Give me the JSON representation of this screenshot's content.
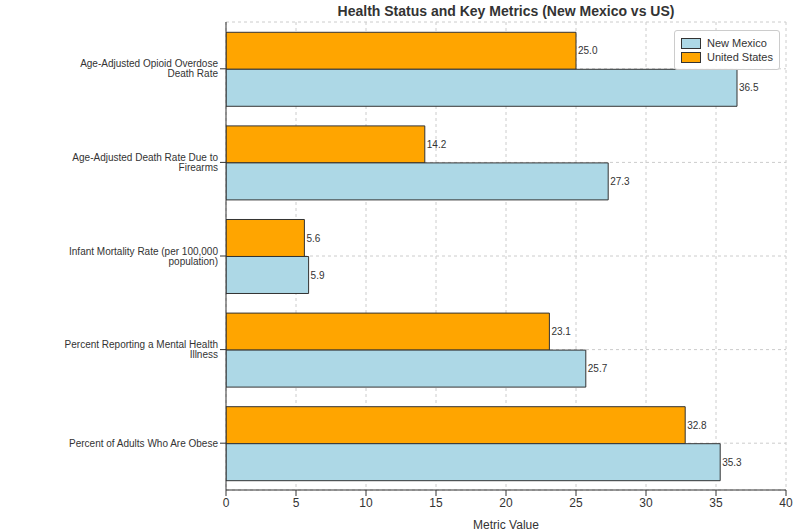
{
  "chart_data": {
    "type": "bar",
    "title": "Health Status and Key Metrics (New Mexico vs US)",
    "orientation": "horizontal",
    "categories": [
      "Age-Adjusted Opioid Overdose Death Rate",
      "Age-Adjusted Death Rate Due to Firearms",
      "Infant Mortality Rate (per 100,000 population)",
      "Percent Reporting a Mental Health Illness",
      "Percent of Adults Who Are Obese"
    ],
    "series": [
      {
        "name": "New Mexico",
        "color": "#add8e6",
        "values": [
          36.5,
          27.3,
          5.9,
          25.7,
          35.3
        ]
      },
      {
        "name": "United States",
        "color": "#ffa500",
        "values": [
          25.0,
          14.2,
          5.6,
          23.1,
          32.8
        ],
        "value_labels": [
          "25.0",
          "14.2",
          "5.6",
          "23.1",
          "32.8"
        ]
      }
    ],
    "xlabel": "Metric Value",
    "xlim": [
      0,
      40
    ],
    "xticks": [
      0,
      5,
      10,
      15,
      20,
      25,
      30,
      35,
      40
    ],
    "grid": true,
    "legend": "upper right",
    "data_labels": true
  }
}
